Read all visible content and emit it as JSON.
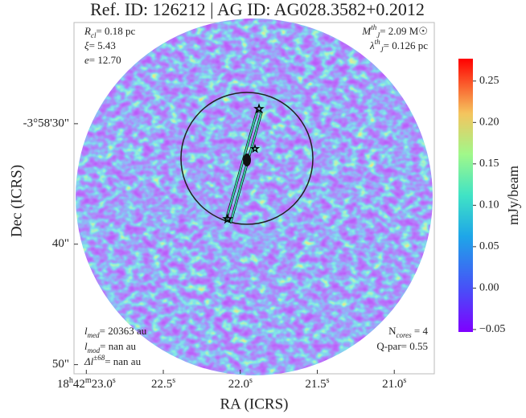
{
  "chart_data": {
    "type": "image",
    "title": "Ref. ID: 126212 | AG ID: AG028.3582+0.2012",
    "xlabel": "RA (ICRS)",
    "ylabel": "Dec (ICRS)",
    "xlim": [
      23.08,
      20.74
    ],
    "xticks": [
      {
        "value": 23.0,
        "label": "18h42m23.0s"
      },
      {
        "value": 22.5,
        "label": "22.5s"
      },
      {
        "value": 22.0,
        "label": "22.0s"
      },
      {
        "value": 21.5,
        "label": "21.5s"
      },
      {
        "value": 21.0,
        "label": "21.0s"
      }
    ],
    "ylim": [
      50.76,
      21.6
    ],
    "yticks": [
      {
        "value": 30,
        "label": "-3°58'30\""
      },
      {
        "value": 40,
        "label": "40\""
      },
      {
        "value": 50,
        "label": "50\""
      }
    ],
    "colorbar": {
      "label": "mJy/beam",
      "clim": [
        -0.053,
        0.277
      ],
      "ticks": [
        {
          "value": -0.05,
          "label": "−0.05"
        },
        {
          "value": 0,
          "label": "0.00"
        },
        0.05,
        {
          "value": 0.1,
          "label": "0.10"
        },
        0.15,
        {
          "value": 0.2,
          "label": "0.20"
        },
        0.25
      ]
    },
    "annotations": [
      {
        "symbol": "R",
        "sub": "cl",
        "text": "= 0.18 pc"
      },
      {
        "symbol": "ξ",
        "text": "= 5.43"
      },
      {
        "symbol": "e",
        "text": "= 12.70"
      },
      {
        "symbol": "M",
        "sub": "J",
        "sup": "th",
        "text": "= 2.09 M☉"
      },
      {
        "symbol": "λ",
        "sub": "J",
        "sup": "th",
        "text": "= 0.126 pc"
      },
      {
        "symbol": "l",
        "sub": "med",
        "text": "= 20363 au"
      },
      {
        "symbol": "l",
        "sub": "mod",
        "text": "= nan au"
      },
      {
        "symbol": "Δl",
        "sup": "±68",
        "text": "= nan au"
      },
      {
        "symbol": "N",
        "sub": "cores",
        "text": " = 4"
      },
      {
        "symbol": "Q-par",
        "text": "= 0.55"
      }
    ]
  }
}
